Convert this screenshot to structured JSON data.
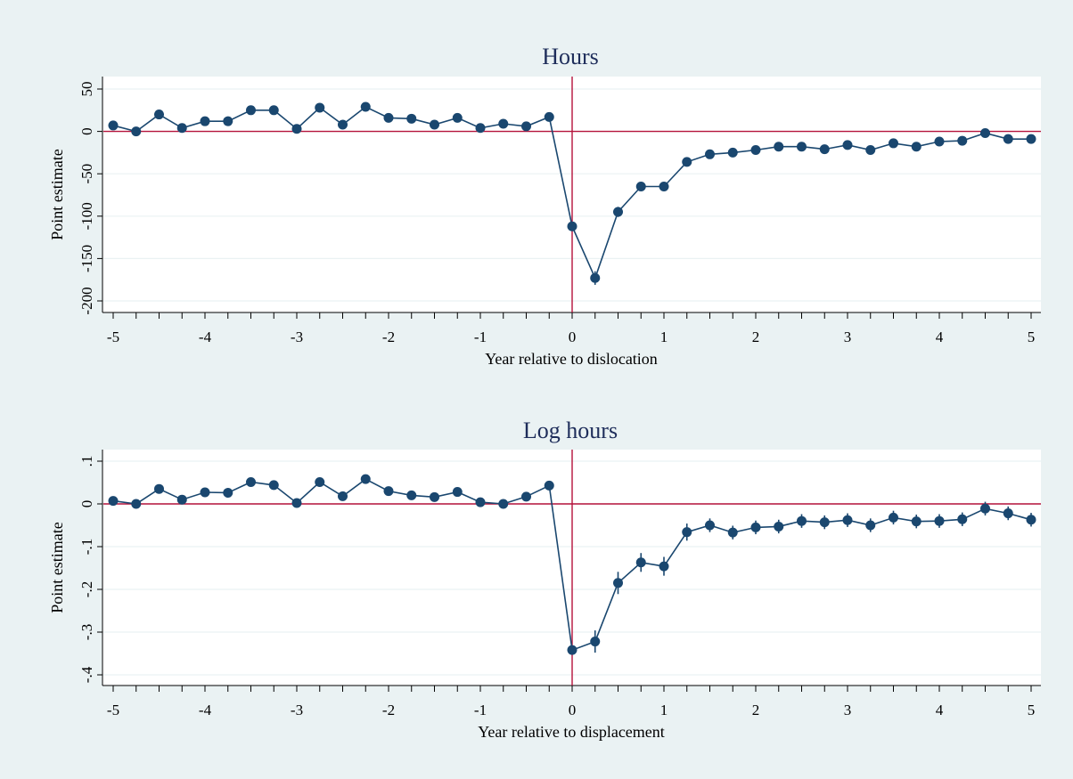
{
  "chart_data": [
    {
      "type": "line",
      "title": "Hours",
      "xlabel": "Year relative to dislocation",
      "ylabel": "Point estimate",
      "xlim": [
        -5,
        5
      ],
      "ylim": [
        -200,
        50
      ],
      "x_ticks": [
        "-5",
        "-4",
        "-3",
        "-2",
        "-1",
        "0",
        "1",
        "2",
        "3",
        "4",
        "5"
      ],
      "y_ticks": [
        "50",
        "0",
        "-50",
        "-100",
        "-150",
        "-200"
      ],
      "reference_lines": {
        "x": 0,
        "y": 0,
        "color": "#b5123b"
      },
      "series_color": "#1a476f",
      "x": [
        -5,
        -4.75,
        -4.5,
        -4.25,
        -4,
        -3.75,
        -3.5,
        -3.25,
        -3,
        -2.75,
        -2.5,
        -2.25,
        -2,
        -1.75,
        -1.5,
        -1.25,
        -1,
        -0.75,
        -0.5,
        -0.25,
        0,
        0.25,
        0.5,
        0.75,
        1,
        1.25,
        1.5,
        1.75,
        2,
        2.25,
        2.5,
        2.75,
        3,
        3.25,
        3.5,
        3.75,
        4,
        4.25,
        4.5,
        4.75,
        5
      ],
      "y": [
        7,
        0,
        20,
        4,
        12,
        12,
        25,
        25,
        3,
        28,
        8,
        29,
        16,
        15,
        8,
        16,
        4,
        9,
        6,
        17,
        -112,
        -173,
        -95,
        -65,
        -65,
        -36,
        -27,
        -25,
        -22,
        -18,
        -18,
        -21,
        -16,
        -22,
        -14,
        -18,
        -12,
        -11,
        -2,
        -9,
        -9
      ],
      "ci_halfwidth": [
        3,
        3,
        3,
        3,
        3,
        3,
        3,
        3,
        3,
        3,
        3,
        3,
        3,
        3,
        3,
        3,
        3,
        3,
        3,
        3,
        5,
        8,
        6,
        5,
        5,
        4,
        3,
        3,
        3,
        3,
        3,
        3,
        3,
        3,
        3,
        3,
        3,
        3,
        3,
        3,
        3
      ]
    },
    {
      "type": "line",
      "title": "Log hours",
      "xlabel": "Year relative to displacement",
      "ylabel": "Point estimate",
      "xlim": [
        -5,
        5
      ],
      "ylim": [
        -0.4,
        0.1
      ],
      "x_ticks": [
        "-5",
        "-4",
        "-3",
        "-2",
        "-1",
        "0",
        "1",
        "2",
        "3",
        "4",
        "5"
      ],
      "y_ticks": [
        ".1",
        "0",
        "-.1",
        "-.2",
        "-.3",
        "-.4"
      ],
      "reference_lines": {
        "x": 0,
        "y": 0,
        "color": "#b5123b"
      },
      "series_color": "#1a476f",
      "x": [
        -5,
        -4.75,
        -4.5,
        -4.25,
        -4,
        -3.75,
        -3.5,
        -3.25,
        -3,
        -2.75,
        -2.5,
        -2.25,
        -2,
        -1.75,
        -1.5,
        -1.25,
        -1,
        -0.75,
        -0.5,
        -0.25,
        0,
        0.25,
        0.5,
        0.75,
        1,
        1.25,
        1.5,
        1.75,
        2,
        2.25,
        2.5,
        2.75,
        3,
        3.25,
        3.5,
        3.75,
        4,
        4.25,
        4.5,
        4.75,
        5
      ],
      "y": [
        0.007,
        0,
        0.035,
        0.01,
        0.027,
        0.026,
        0.051,
        0.044,
        0.002,
        0.051,
        0.018,
        0.058,
        0.03,
        0.02,
        0.016,
        0.028,
        0.004,
        0,
        0.017,
        0.043,
        -0.342,
        -0.322,
        -0.185,
        -0.137,
        -0.146,
        -0.066,
        -0.05,
        -0.067,
        -0.055,
        -0.053,
        -0.04,
        -0.043,
        -0.038,
        -0.05,
        -0.032,
        -0.041,
        -0.04,
        -0.036,
        -0.011,
        -0.022,
        -0.037
      ],
      "ci_halfwidth": [
        0.008,
        0.008,
        0.008,
        0.008,
        0.008,
        0.008,
        0.008,
        0.008,
        0.008,
        0.008,
        0.008,
        0.008,
        0.008,
        0.008,
        0.008,
        0.008,
        0.008,
        0.008,
        0.008,
        0.008,
        0.01,
        0.026,
        0.026,
        0.022,
        0.022,
        0.02,
        0.016,
        0.016,
        0.016,
        0.016,
        0.016,
        0.016,
        0.016,
        0.016,
        0.016,
        0.016,
        0.016,
        0.016,
        0.016,
        0.016,
        0.016
      ]
    }
  ]
}
